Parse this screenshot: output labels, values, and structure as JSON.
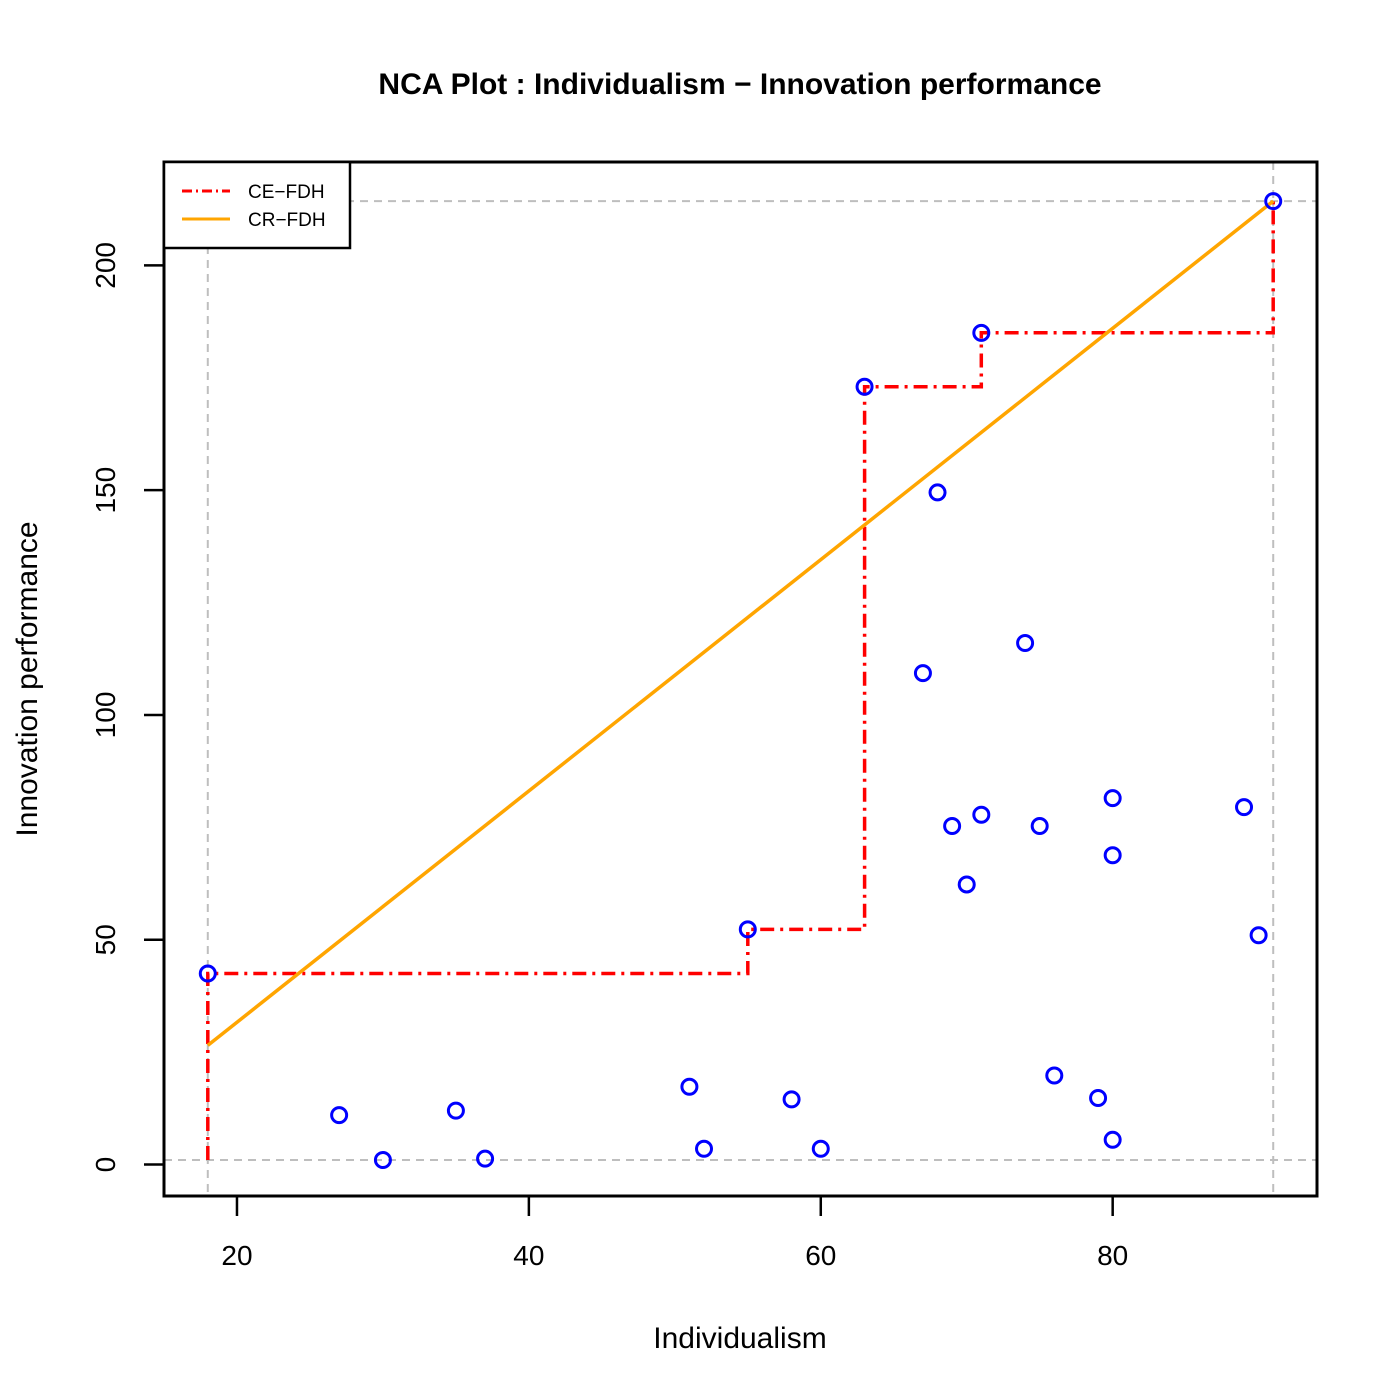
{
  "chart_data": {
    "type": "scatter",
    "title": "NCA Plot : Individualism − Innovation performance",
    "xlabel": "Individualism",
    "ylabel": "Innovation performance",
    "xlim": [
      15,
      94
    ],
    "ylim": [
      -7,
      223
    ],
    "x_ticks": [
      20,
      40,
      60,
      80
    ],
    "y_ticks": [
      0,
      50,
      100,
      150,
      200
    ],
    "point_color": "#0000ff",
    "points": [
      {
        "x": 18,
        "y": 42.5
      },
      {
        "x": 27,
        "y": 11
      },
      {
        "x": 30,
        "y": 1
      },
      {
        "x": 35,
        "y": 12
      },
      {
        "x": 37,
        "y": 1.3
      },
      {
        "x": 51,
        "y": 17.3
      },
      {
        "x": 52,
        "y": 3.5
      },
      {
        "x": 55,
        "y": 52.3
      },
      {
        "x": 58,
        "y": 14.5
      },
      {
        "x": 60,
        "y": 3.5
      },
      {
        "x": 63,
        "y": 173
      },
      {
        "x": 67,
        "y": 109.3
      },
      {
        "x": 68,
        "y": 149.5
      },
      {
        "x": 69,
        "y": 75.3
      },
      {
        "x": 70,
        "y": 62.3
      },
      {
        "x": 71,
        "y": 185
      },
      {
        "x": 71,
        "y": 77.8
      },
      {
        "x": 74,
        "y": 116
      },
      {
        "x": 75,
        "y": 75.3
      },
      {
        "x": 76,
        "y": 19.8
      },
      {
        "x": 79,
        "y": 14.8
      },
      {
        "x": 80,
        "y": 81.5
      },
      {
        "x": 80,
        "y": 68.8
      },
      {
        "x": 80,
        "y": 5.5
      },
      {
        "x": 89,
        "y": 79.5
      },
      {
        "x": 90,
        "y": 51
      },
      {
        "x": 91,
        "y": 214.3
      }
    ],
    "reference_lines": {
      "x": [
        18,
        91
      ],
      "y": [
        1,
        214.3
      ],
      "color": "#bebebe",
      "style": "dashed"
    },
    "series": [
      {
        "name": "CE−FDH",
        "type": "step",
        "color": "#ff0000",
        "style": "dot-dash",
        "x": [
          18,
          18,
          55,
          55,
          63,
          63,
          71,
          71,
          91,
          91
        ],
        "y": [
          1,
          42.5,
          42.5,
          52.3,
          52.3,
          173,
          173,
          185,
          185,
          214.3
        ]
      },
      {
        "name": "CR−FDH",
        "type": "line",
        "color": "#ffa500",
        "style": "solid",
        "x": [
          18,
          91
        ],
        "y": [
          26.5,
          214.3
        ]
      }
    ],
    "legend": {
      "position": "top-left",
      "entries": [
        "CE−FDH",
        "CR−FDH"
      ]
    },
    "grid": false
  }
}
